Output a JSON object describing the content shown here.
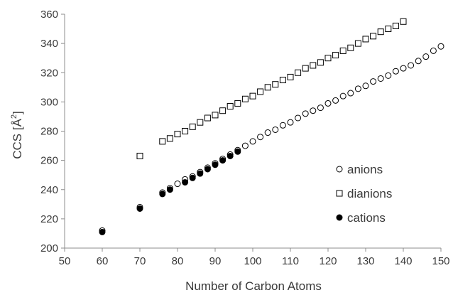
{
  "chart_data": {
    "type": "scatter",
    "title": "",
    "xlabel": "Number of Carbon Atoms",
    "ylabel_prefix": "CCS [Å",
    "ylabel_sup": "2",
    "ylabel_suffix": "]",
    "xlim": [
      50,
      150
    ],
    "ylim": [
      200,
      360
    ],
    "x_ticks": [
      50,
      60,
      70,
      80,
      90,
      100,
      110,
      120,
      130,
      140,
      150
    ],
    "y_ticks": [
      200,
      220,
      240,
      260,
      280,
      300,
      320,
      340,
      360
    ],
    "grid": false,
    "legend_position": "lower-right",
    "series": [
      {
        "name": "anions",
        "marker": "open-circle",
        "color": "#000000",
        "x": [
          60,
          70,
          76,
          78,
          80,
          82,
          84,
          86,
          88,
          90,
          92,
          94,
          96,
          98,
          100,
          102,
          104,
          106,
          108,
          110,
          112,
          114,
          116,
          118,
          120,
          122,
          124,
          126,
          128,
          130,
          132,
          134,
          136,
          138,
          140,
          142,
          144,
          146,
          148,
          150
        ],
        "y": [
          212,
          228,
          238,
          241,
          244,
          247,
          249,
          252,
          255,
          258,
          261,
          264,
          267,
          270,
          273,
          276,
          279,
          281,
          284,
          286,
          289,
          292,
          294,
          296,
          299,
          301,
          304,
          306,
          309,
          311,
          314,
          316,
          318,
          321,
          323,
          325,
          328,
          331,
          335,
          338
        ]
      },
      {
        "name": "dianions",
        "marker": "open-square",
        "color": "#000000",
        "x": [
          70,
          76,
          78,
          80,
          82,
          84,
          86,
          88,
          90,
          92,
          94,
          96,
          98,
          100,
          102,
          104,
          106,
          108,
          110,
          112,
          114,
          116,
          118,
          120,
          122,
          124,
          126,
          128,
          130,
          132,
          134,
          136,
          138,
          140
        ],
        "y": [
          263,
          273,
          275,
          278,
          280,
          283,
          286,
          289,
          291,
          294,
          297,
          299,
          302,
          304,
          307,
          310,
          312,
          315,
          317,
          320,
          323,
          325,
          327,
          330,
          332,
          335,
          337,
          340,
          343,
          345,
          348,
          350,
          352,
          355
        ]
      },
      {
        "name": "cations",
        "marker": "filled-circle",
        "color": "#000000",
        "x": [
          60,
          70,
          76,
          78,
          82,
          84,
          86,
          88,
          90,
          92,
          94,
          96
        ],
        "y": [
          211,
          227,
          237,
          240,
          245,
          248,
          251,
          254,
          257,
          260,
          263,
          266
        ]
      }
    ]
  }
}
